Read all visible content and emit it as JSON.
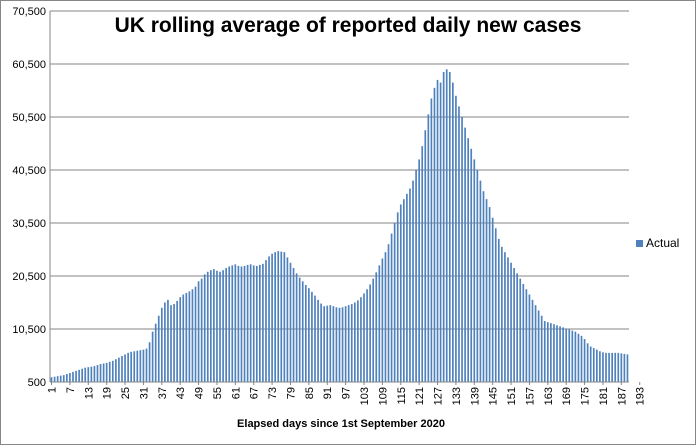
{
  "chart_data": {
    "type": "bar",
    "title": "UK rolling average of  reported daily new cases",
    "xlabel": "Elapsed days since 1st September 2020",
    "ylabel": "",
    "ylim": [
      500,
      70500
    ],
    "yticks": [
      500,
      10500,
      20500,
      30500,
      40500,
      50500,
      60500,
      70500
    ],
    "ytick_labels": [
      "500",
      "10,500",
      "20,500",
      "30,500",
      "40,500",
      "50,500",
      "60,500",
      "70,500"
    ],
    "xtick_labels": [
      "1",
      "7",
      "13",
      "19",
      "25",
      "31",
      "37",
      "43",
      "49",
      "55",
      "61",
      "67",
      "73",
      "79",
      "85",
      "91",
      "97",
      "103",
      "109",
      "115",
      "121",
      "127",
      "133",
      "139",
      "145",
      "151",
      "157",
      "163",
      "169",
      "175",
      "181",
      "187",
      "193"
    ],
    "x_start": 1,
    "grid": "horizontal",
    "legend_position": "right",
    "series": [
      {
        "name": "Actual",
        "color": "#4f81bd",
        "values": [
          1400,
          1500,
          1600,
          1700,
          1800,
          2000,
          2200,
          2400,
          2600,
          2800,
          3000,
          3200,
          3300,
          3400,
          3500,
          3700,
          3900,
          4000,
          4100,
          4300,
          4500,
          4800,
          5100,
          5400,
          5700,
          6000,
          6200,
          6300,
          6400,
          6500,
          6600,
          6800,
          8000,
          10000,
          11500,
          13000,
          14500,
          15500,
          16000,
          15000,
          15200,
          15800,
          16500,
          17000,
          17300,
          17600,
          18000,
          18500,
          19500,
          20000,
          20800,
          21300,
          21600,
          21800,
          21500,
          21300,
          21600,
          22000,
          22300,
          22500,
          22700,
          22400,
          22300,
          22400,
          22600,
          22700,
          22500,
          22400,
          22600,
          22800,
          23500,
          24200,
          24700,
          25000,
          25200,
          25100,
          25000,
          24000,
          23000,
          22000,
          21000,
          20200,
          19500,
          18800,
          18200,
          17500,
          16800,
          16000,
          15300,
          14800,
          14900,
          15000,
          14800,
          14600,
          14500,
          14600,
          14800,
          15000,
          15200,
          15500,
          15900,
          16500,
          17200,
          18000,
          18900,
          20000,
          21200,
          22500,
          23800,
          25000,
          26500,
          28500,
          30500,
          32500,
          34000,
          35000,
          36000,
          37000,
          38500,
          40500,
          42500,
          45000,
          48000,
          51000,
          54000,
          56000,
          57500,
          57000,
          59000,
          59500,
          59000,
          57000,
          54500,
          52500,
          50500,
          48500,
          46500,
          44500,
          42500,
          40500,
          38500,
          36500,
          35000,
          33500,
          31500,
          29500,
          27500,
          26000,
          25000,
          24000,
          23000,
          22000,
          21000,
          20000,
          19000,
          18000,
          17000,
          16000,
          15000,
          14000,
          13000,
          12000,
          11800,
          11600,
          11400,
          11200,
          11000,
          10800,
          10600,
          10400,
          10200,
          10000,
          9600,
          9200,
          8600,
          7800,
          7200,
          6900,
          6600,
          6300,
          6100,
          6000,
          6000,
          6000,
          6000,
          6000,
          5900,
          5800,
          5700
        ]
      }
    ]
  }
}
